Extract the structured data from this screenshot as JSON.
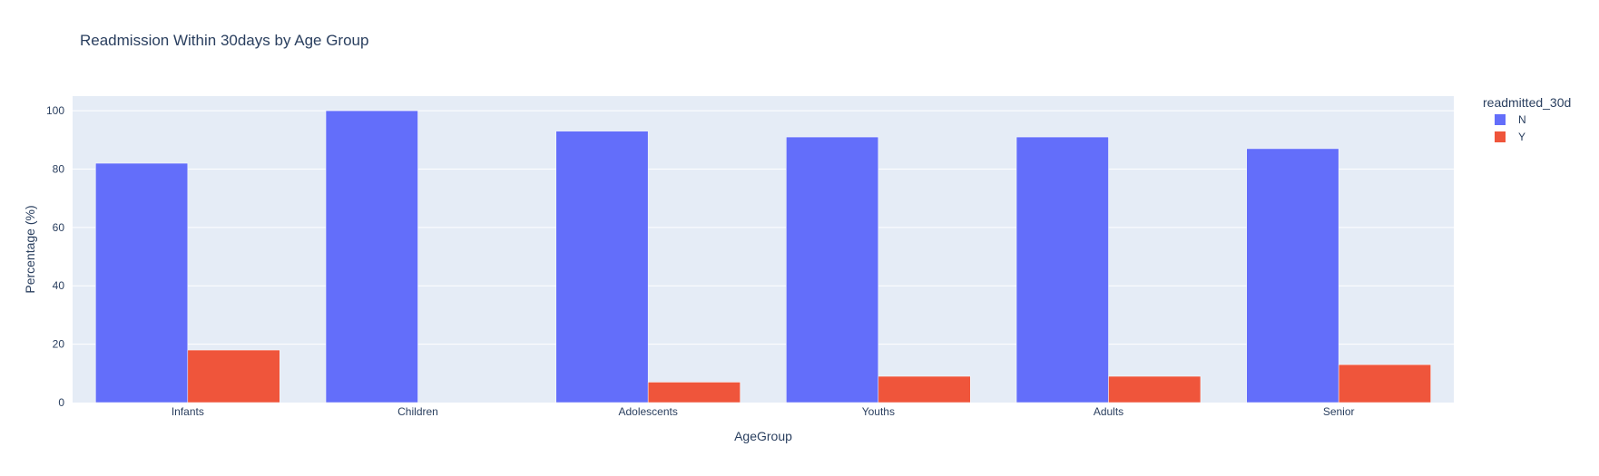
{
  "chart_data": {
    "type": "bar",
    "title": "Readmission Within 30days by Age Group",
    "xlabel": "AgeGroup",
    "ylabel": "Percentage (%)",
    "categories": [
      "Infants",
      "Children",
      "Adolescents",
      "Youths",
      "Adults",
      "Senior"
    ],
    "series": [
      {
        "name": "N",
        "color": "#636efa",
        "values": [
          82,
          100,
          93,
          91,
          91,
          87
        ]
      },
      {
        "name": "Y",
        "color": "#ef553b",
        "values": [
          18,
          0,
          7,
          9,
          9,
          13
        ]
      }
    ],
    "ylim": [
      0,
      105
    ],
    "yticks": [
      0,
      20,
      40,
      60,
      80,
      100
    ],
    "grid": true,
    "legend": {
      "title": "readmitted_30d",
      "position": "top-right"
    },
    "plot_background": "#e5ecf6"
  }
}
